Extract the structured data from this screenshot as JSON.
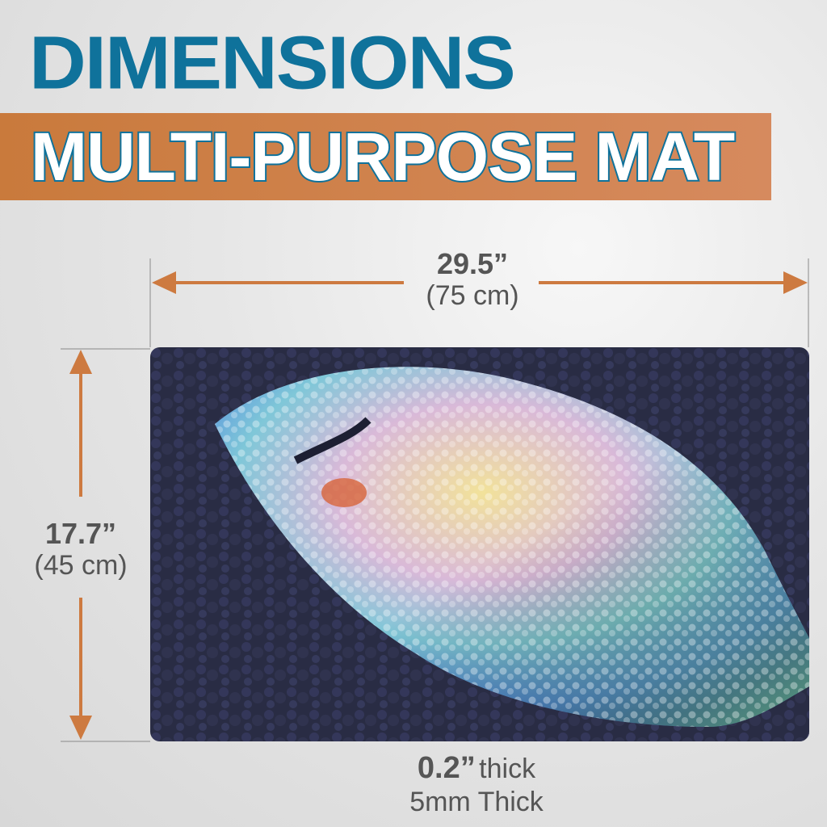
{
  "title": "DIMENSIONS",
  "banner": "MULTI-PURPOSE MAT",
  "width": {
    "inches": "29.5”",
    "cm": "(75 cm)"
  },
  "height": {
    "inches": "17.7”",
    "cm": "(45 cm)"
  },
  "thickness": {
    "inches": "0.2”",
    "inches_suffix": "thick",
    "mm": "5mm Thick"
  },
  "colors": {
    "title": "#0f729b",
    "banner": "#d07f45",
    "arrow": "#cd7a40",
    "mat": "#292c44"
  }
}
